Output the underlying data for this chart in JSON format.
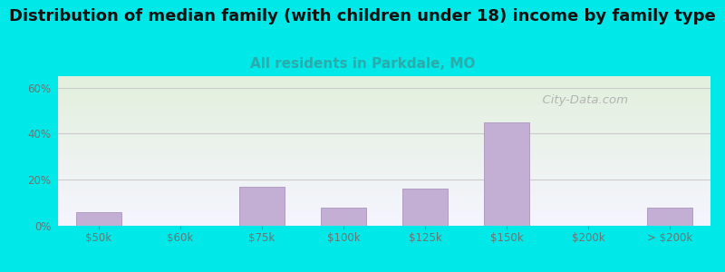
{
  "title": "Distribution of median family (with children under 18) income by family type",
  "subtitle": "All residents in Parkdale, MO",
  "categories": [
    "$50k",
    "$60k",
    "$75k",
    "$100k",
    "$125k",
    "$150k",
    "$200k",
    "> $200k"
  ],
  "values": [
    6.0,
    0.0,
    17.0,
    8.0,
    16.0,
    45.0,
    0.0,
    8.0
  ],
  "bar_color": "#c4afd4",
  "bar_edge_color": "#b09dc0",
  "ylim": [
    0,
    65
  ],
  "yticks": [
    0,
    20,
    40,
    60
  ],
  "ytick_labels": [
    "0%",
    "20%",
    "40%",
    "60%"
  ],
  "background_outer": "#00e8e8",
  "plot_bg_top": "#e2f0dc",
  "plot_bg_bottom": "#f5f5ff",
  "title_color": "#111111",
  "subtitle_color": "#2aacac",
  "tick_color": "#667777",
  "grid_color": "#cccccc",
  "title_fontsize": 13,
  "subtitle_fontsize": 11,
  "watermark": "  City-Data.com",
  "watermark_color": "#aaaaaa"
}
